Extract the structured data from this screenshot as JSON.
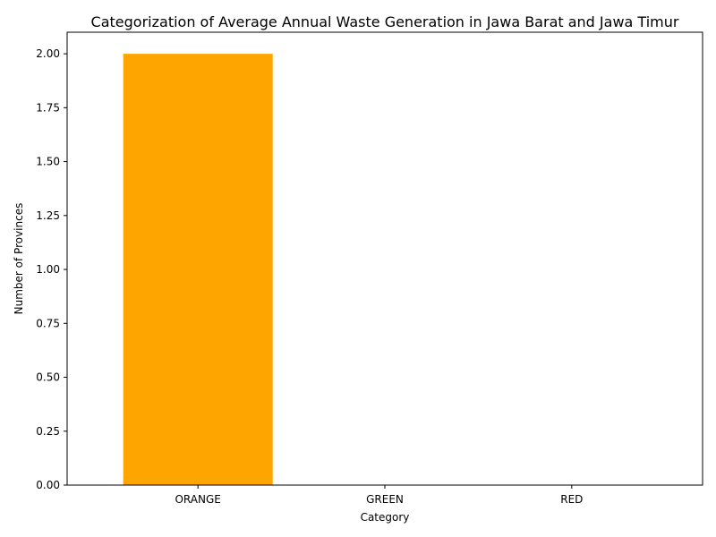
{
  "chart_data": {
    "type": "bar",
    "title": "Categorization of Average Annual Waste Generation in Jawa Barat and Jawa Timur",
    "xlabel": "Category",
    "ylabel": "Number of Provinces",
    "categories": [
      "ORANGE",
      "GREEN",
      "RED"
    ],
    "values": [
      2,
      0,
      0
    ],
    "bar_colors": [
      "#ffa500",
      "#008000",
      "#ff0000"
    ],
    "ylim": [
      0,
      2.1
    ],
    "yticks": [
      "0.00",
      "0.25",
      "0.50",
      "0.75",
      "1.00",
      "1.25",
      "1.50",
      "1.75",
      "2.00"
    ],
    "grid": false,
    "legend": "none"
  }
}
